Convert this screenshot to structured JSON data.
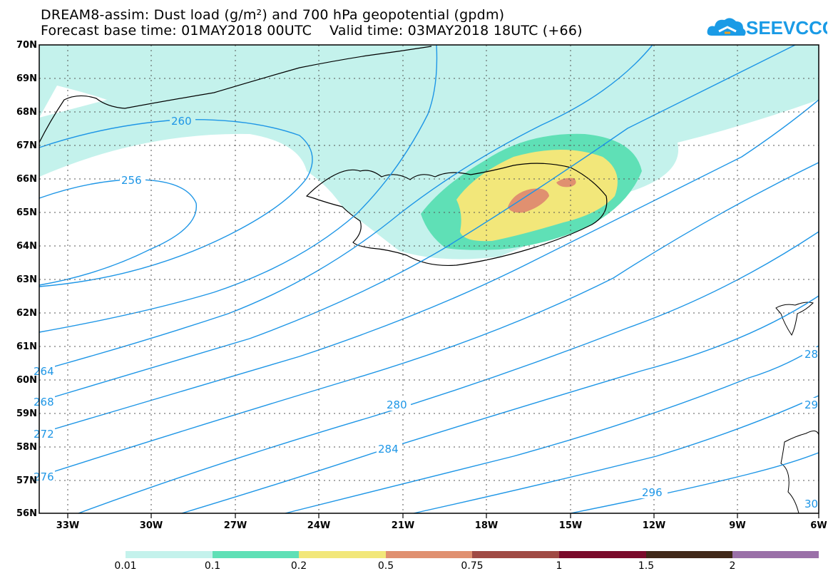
{
  "title_line1": "DREAM8-assim: Dust load (g/m²) and 700 hPa geopotential (gpdm)",
  "title_line2": "Forecast base time: 01MAY2018 00UTC    Valid time: 03MAY2018 18UTC (+66)",
  "logo": {
    "text": "SEEVCCC",
    "icon": "cloud-icon",
    "color": "#1a9be6"
  },
  "axes": {
    "lat_labels": [
      "70N",
      "69N",
      "68N",
      "67N",
      "66N",
      "65N",
      "64N",
      "63N",
      "62N",
      "61N",
      "60N",
      "59N",
      "58N",
      "57N",
      "56N"
    ],
    "lon_labels": [
      "33W",
      "30W",
      "27W",
      "24W",
      "21W",
      "18W",
      "15W",
      "12W",
      "9W",
      "6W"
    ]
  },
  "contour_labels": [
    "260",
    "256",
    "264",
    "268",
    "272",
    "276",
    "280",
    "284",
    "28",
    "29",
    "296",
    "30"
  ],
  "colorbar": {
    "labels": [
      "0.01",
      "0.1",
      "0.2",
      "0.5",
      "0.75",
      "1",
      "1.5",
      "2"
    ],
    "colors": [
      "#c4f2ec",
      "#5fe0b6",
      "#f2e77a",
      "#e09070",
      "#a04a44",
      "#7a0a2a",
      "#402818",
      "#9a70a8"
    ]
  },
  "colors": {
    "contour": "#1e96e6",
    "coast": "#000000"
  }
}
